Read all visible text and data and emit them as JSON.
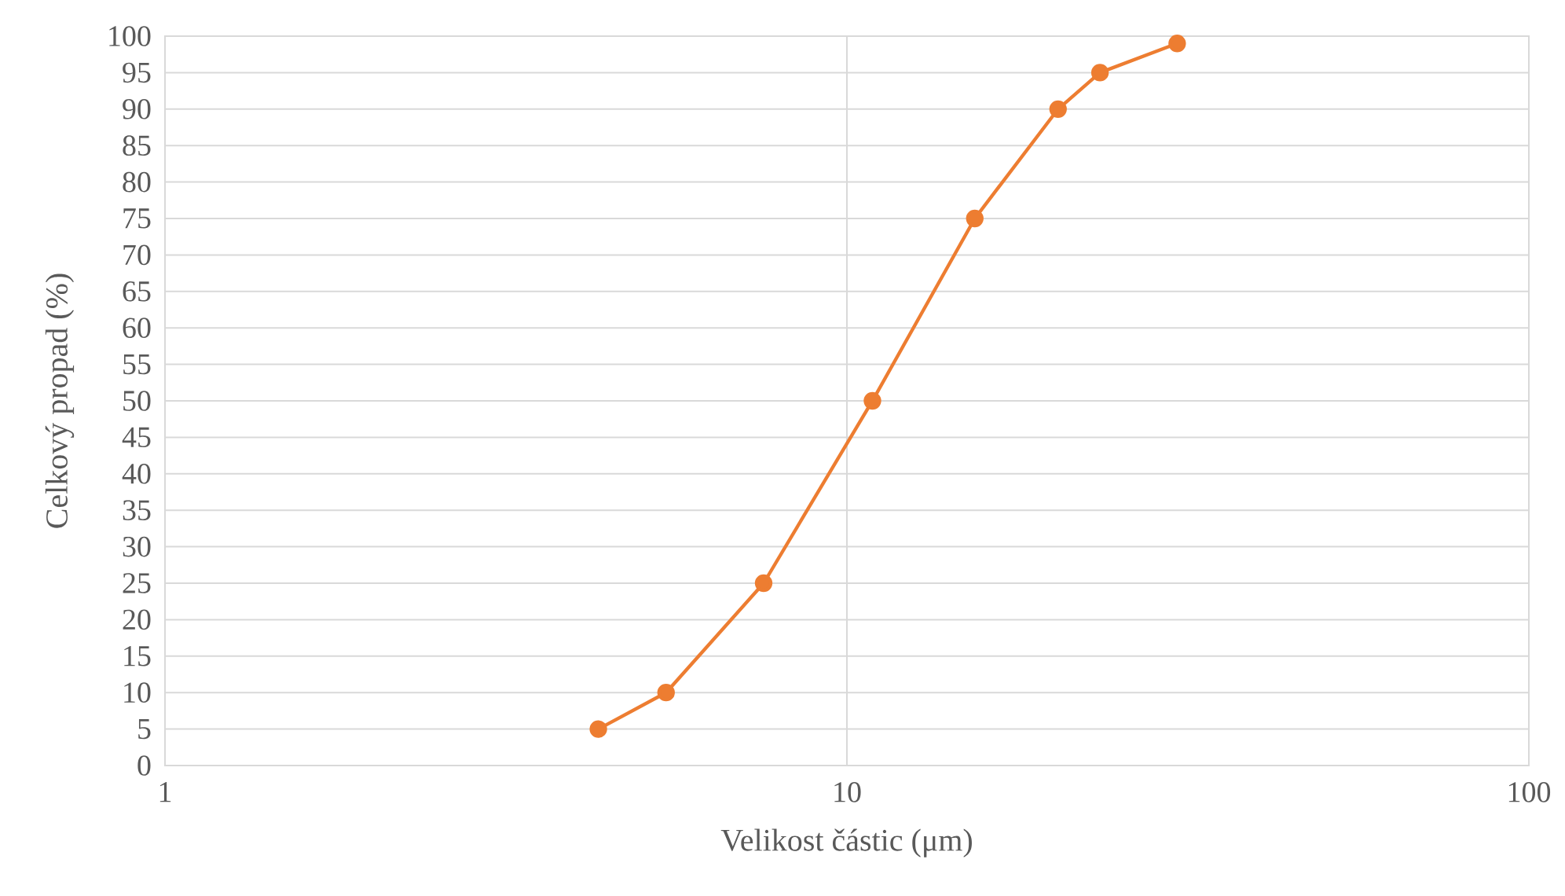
{
  "chart_data": {
    "type": "line",
    "xlabel": "Velikost částic (μm)",
    "ylabel": "Celkový propad (%)",
    "x": [
      4.32,
      5.43,
      7.55,
      10.9,
      15.4,
      20.4,
      23.5,
      30.5
    ],
    "series": [
      {
        "color": "#ed7d31",
        "values": [
          5,
          10,
          25,
          50,
          75,
          90,
          95,
          99
        ]
      }
    ],
    "log": "x",
    "grid": true,
    "marker": "circle",
    "line_style": "solid",
    "xlim": [
      1,
      100
    ],
    "xticks": [
      1,
      10,
      100
    ],
    "ylim": [
      0,
      100
    ],
    "yticks": [
      0,
      5,
      10,
      15,
      20,
      25,
      30,
      35,
      40,
      45,
      50,
      55,
      60,
      65,
      70,
      75,
      80,
      85,
      90,
      95,
      100
    ]
  }
}
